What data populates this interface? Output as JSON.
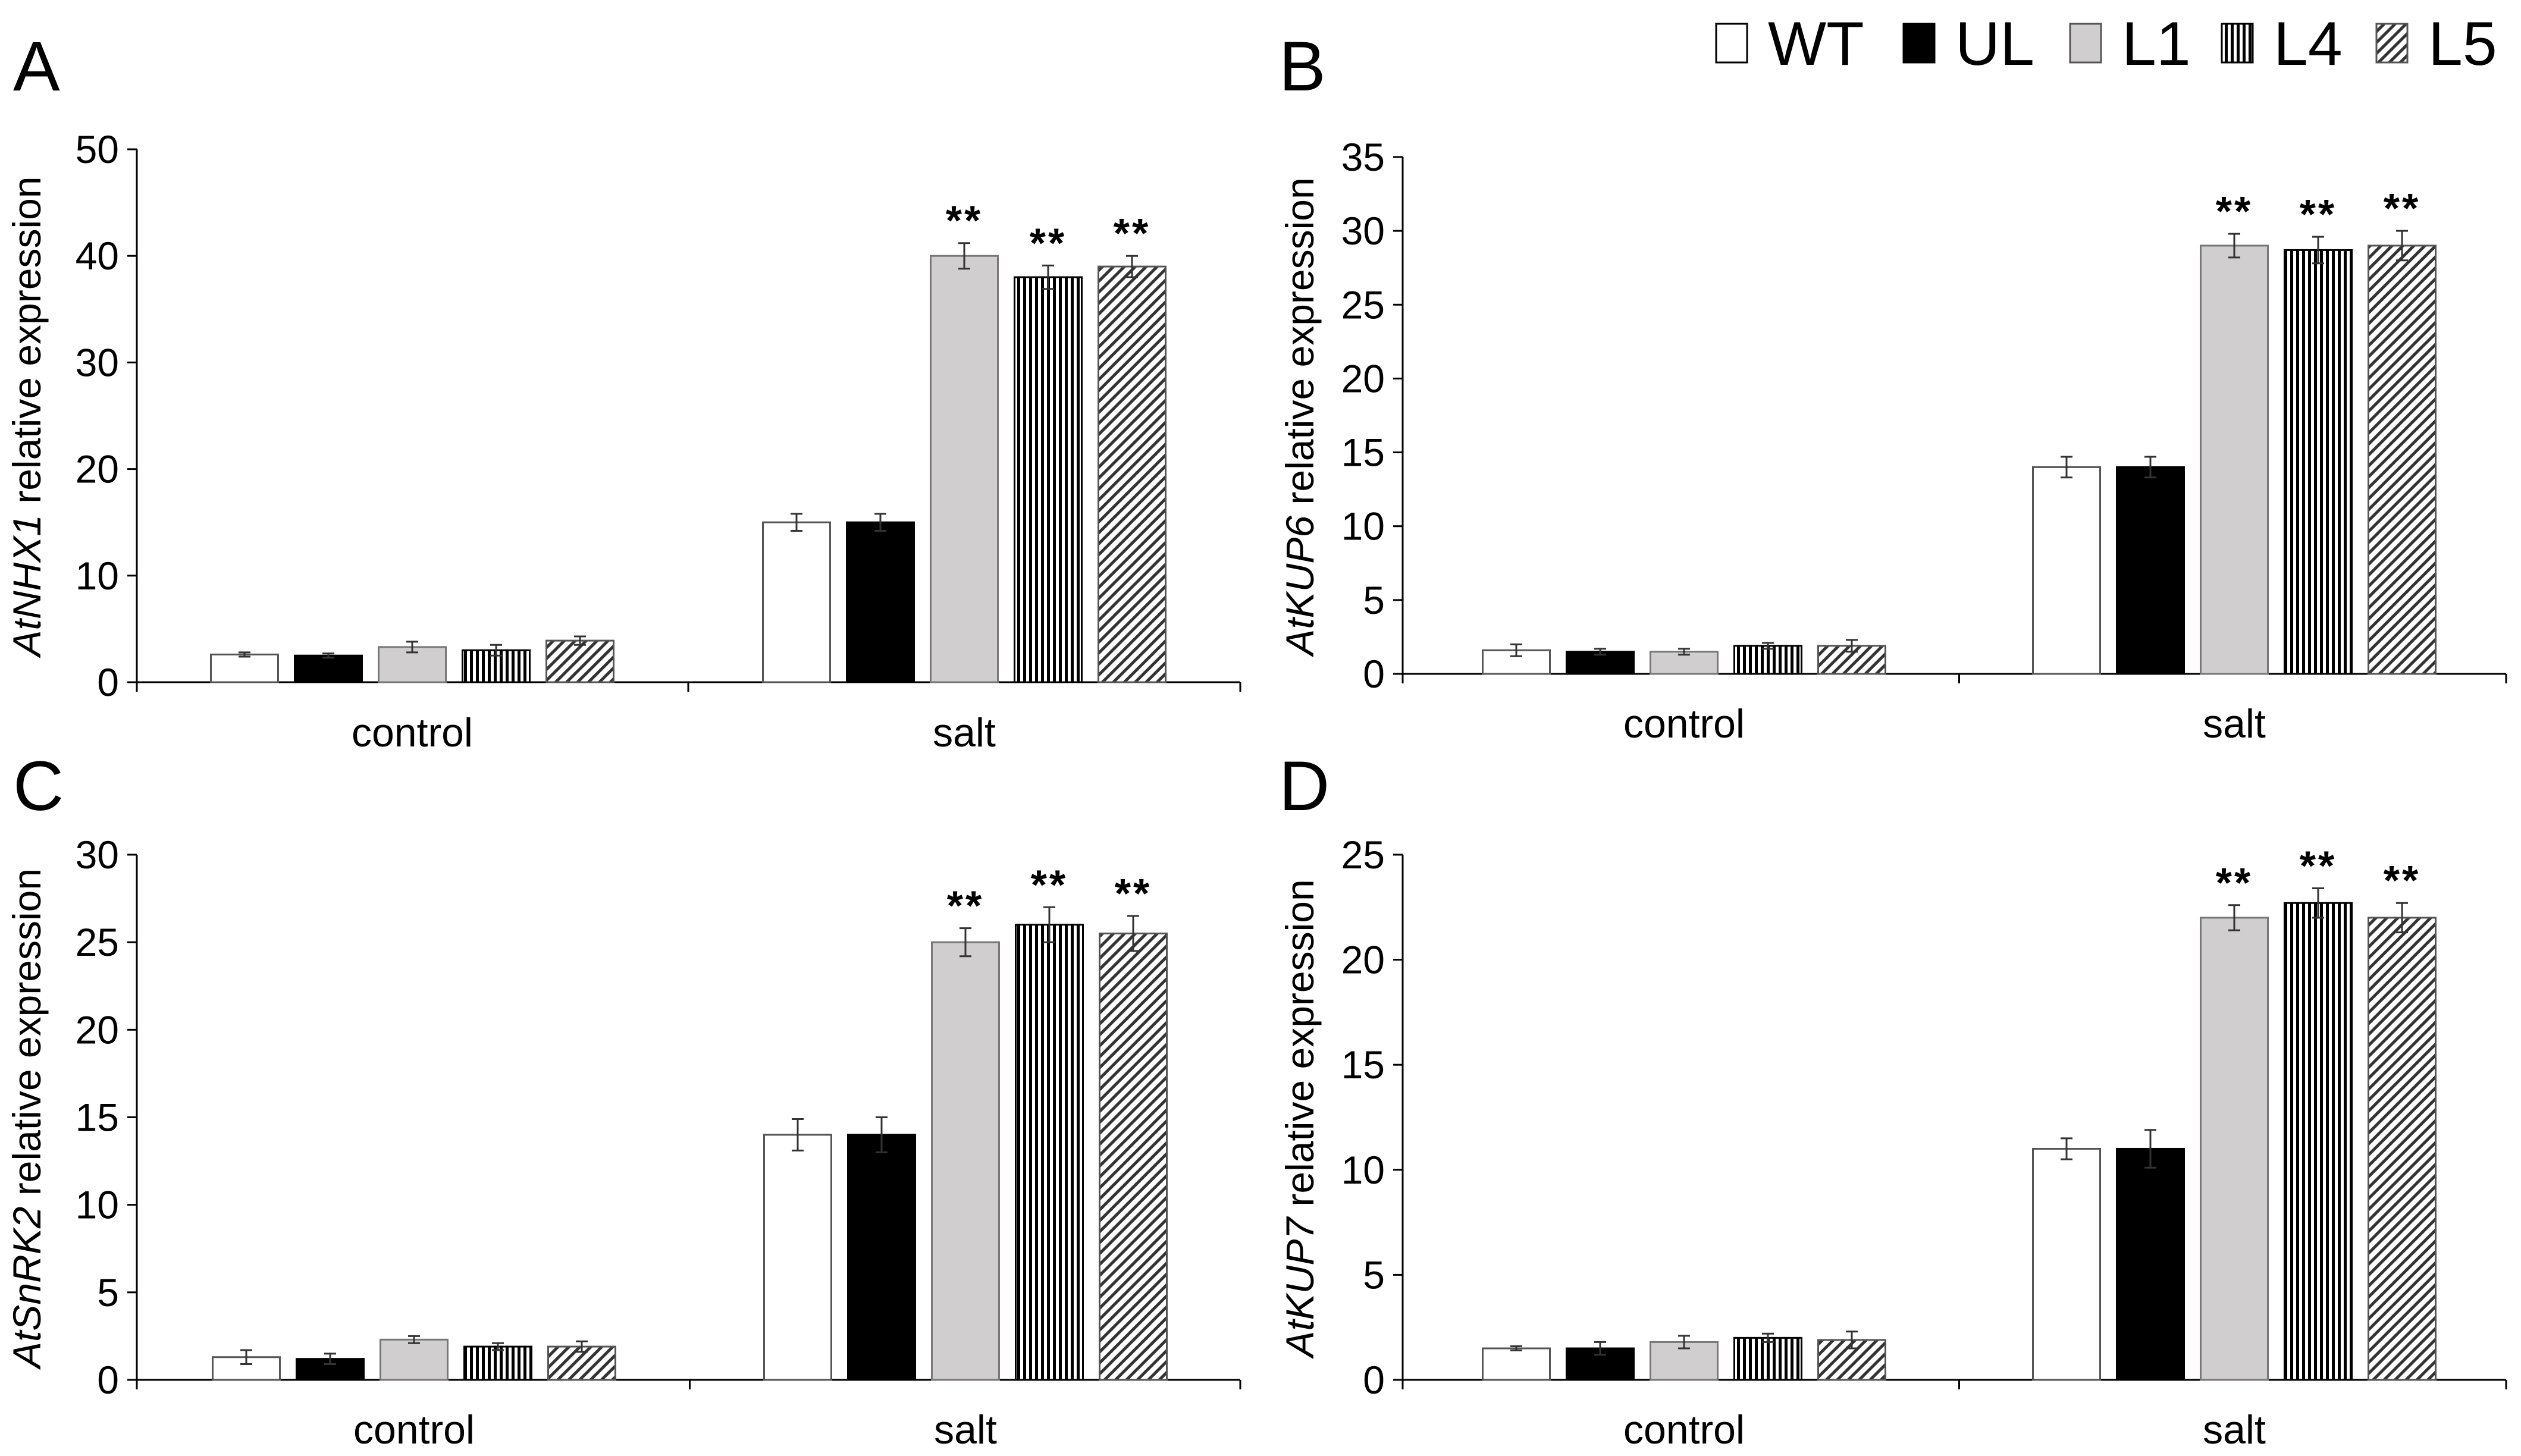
{
  "legend": {
    "entries": [
      {
        "key": "WT",
        "label": "WT"
      },
      {
        "key": "UL",
        "label": "UL"
      },
      {
        "key": "L1",
        "label": "L1"
      },
      {
        "key": "L4",
        "label": "L4"
      },
      {
        "key": "L5",
        "label": "L5"
      }
    ]
  },
  "colors": {
    "WT": "#ffffff",
    "UL": "#000000",
    "L1": "#d0cece",
    "axis": "#000000",
    "error_bar": "#333333"
  },
  "chart_data": [
    {
      "id": "A",
      "panel_label": "A",
      "type": "bar",
      "gene": "AtNHX1",
      "ylabel_suffix": "relative expression",
      "categories": [
        "control",
        "salt"
      ],
      "ylim": [
        0,
        50
      ],
      "yticks": [
        0,
        10,
        20,
        30,
        40,
        50
      ],
      "series": [
        {
          "name": "WT",
          "values": [
            2.6,
            15.0
          ],
          "errors": [
            0.2,
            0.8
          ],
          "sig": [
            "",
            ""
          ]
        },
        {
          "name": "UL",
          "values": [
            2.5,
            15.0
          ],
          "errors": [
            0.2,
            0.8
          ],
          "sig": [
            "",
            ""
          ]
        },
        {
          "name": "L1",
          "values": [
            3.3,
            40.0
          ],
          "errors": [
            0.5,
            1.2
          ],
          "sig": [
            "",
            "**"
          ]
        },
        {
          "name": "L4",
          "values": [
            3.0,
            38.0
          ],
          "errors": [
            0.5,
            1.1
          ],
          "sig": [
            "",
            "**"
          ]
        },
        {
          "name": "L5",
          "values": [
            3.9,
            39.0
          ],
          "errors": [
            0.4,
            1.0
          ],
          "sig": [
            "",
            "**"
          ]
        }
      ]
    },
    {
      "id": "B",
      "panel_label": "B",
      "type": "bar",
      "gene": "AtKUP6",
      "ylabel_suffix": "relative expression",
      "categories": [
        "control",
        "salt"
      ],
      "ylim": [
        0,
        35
      ],
      "yticks": [
        0,
        5,
        10,
        15,
        20,
        25,
        30,
        35
      ],
      "series": [
        {
          "name": "WT",
          "values": [
            1.6,
            14.0
          ],
          "errors": [
            0.4,
            0.7
          ],
          "sig": [
            "",
            ""
          ]
        },
        {
          "name": "UL",
          "values": [
            1.5,
            14.0
          ],
          "errors": [
            0.2,
            0.7
          ],
          "sig": [
            "",
            ""
          ]
        },
        {
          "name": "L1",
          "values": [
            1.5,
            29.0
          ],
          "errors": [
            0.2,
            0.8
          ],
          "sig": [
            "",
            "**"
          ]
        },
        {
          "name": "L4",
          "values": [
            1.9,
            28.7
          ],
          "errors": [
            0.2,
            0.9
          ],
          "sig": [
            "",
            "**"
          ]
        },
        {
          "name": "L5",
          "values": [
            1.9,
            29.0
          ],
          "errors": [
            0.4,
            1.0
          ],
          "sig": [
            "",
            "**"
          ]
        }
      ]
    },
    {
      "id": "C",
      "panel_label": "C",
      "type": "bar",
      "gene": "AtSnRK2",
      "ylabel_suffix": "relative expression",
      "categories": [
        "control",
        "salt"
      ],
      "ylim": [
        0,
        30
      ],
      "yticks": [
        0,
        5,
        10,
        15,
        20,
        25,
        30
      ],
      "series": [
        {
          "name": "WT",
          "values": [
            1.3,
            14.0
          ],
          "errors": [
            0.4,
            0.9
          ],
          "sig": [
            "",
            ""
          ]
        },
        {
          "name": "UL",
          "values": [
            1.2,
            14.0
          ],
          "errors": [
            0.3,
            1.0
          ],
          "sig": [
            "",
            ""
          ]
        },
        {
          "name": "L1",
          "values": [
            2.3,
            25.0
          ],
          "errors": [
            0.2,
            0.8
          ],
          "sig": [
            "",
            "**"
          ]
        },
        {
          "name": "L4",
          "values": [
            1.9,
            26.0
          ],
          "errors": [
            0.2,
            1.0
          ],
          "sig": [
            "",
            "**"
          ]
        },
        {
          "name": "L5",
          "values": [
            1.9,
            25.5
          ],
          "errors": [
            0.3,
            1.0
          ],
          "sig": [
            "",
            "**"
          ]
        }
      ]
    },
    {
      "id": "D",
      "panel_label": "D",
      "type": "bar",
      "gene": "AtKUP7",
      "ylabel_suffix": "relative expression",
      "categories": [
        "control",
        "salt"
      ],
      "ylim": [
        0,
        25
      ],
      "yticks": [
        0,
        5,
        10,
        15,
        20,
        25
      ],
      "series": [
        {
          "name": "WT",
          "values": [
            1.5,
            11.0
          ],
          "errors": [
            0.1,
            0.5
          ],
          "sig": [
            "",
            ""
          ]
        },
        {
          "name": "UL",
          "values": [
            1.5,
            11.0
          ],
          "errors": [
            0.3,
            0.9
          ],
          "sig": [
            "",
            ""
          ]
        },
        {
          "name": "L1",
          "values": [
            1.8,
            22.0
          ],
          "errors": [
            0.3,
            0.6
          ],
          "sig": [
            "",
            "**"
          ]
        },
        {
          "name": "L4",
          "values": [
            2.0,
            22.7
          ],
          "errors": [
            0.2,
            0.7
          ],
          "sig": [
            "",
            "**"
          ]
        },
        {
          "name": "L5",
          "values": [
            1.9,
            22.0
          ],
          "errors": [
            0.4,
            0.7
          ],
          "sig": [
            "",
            "**"
          ]
        }
      ]
    }
  ]
}
